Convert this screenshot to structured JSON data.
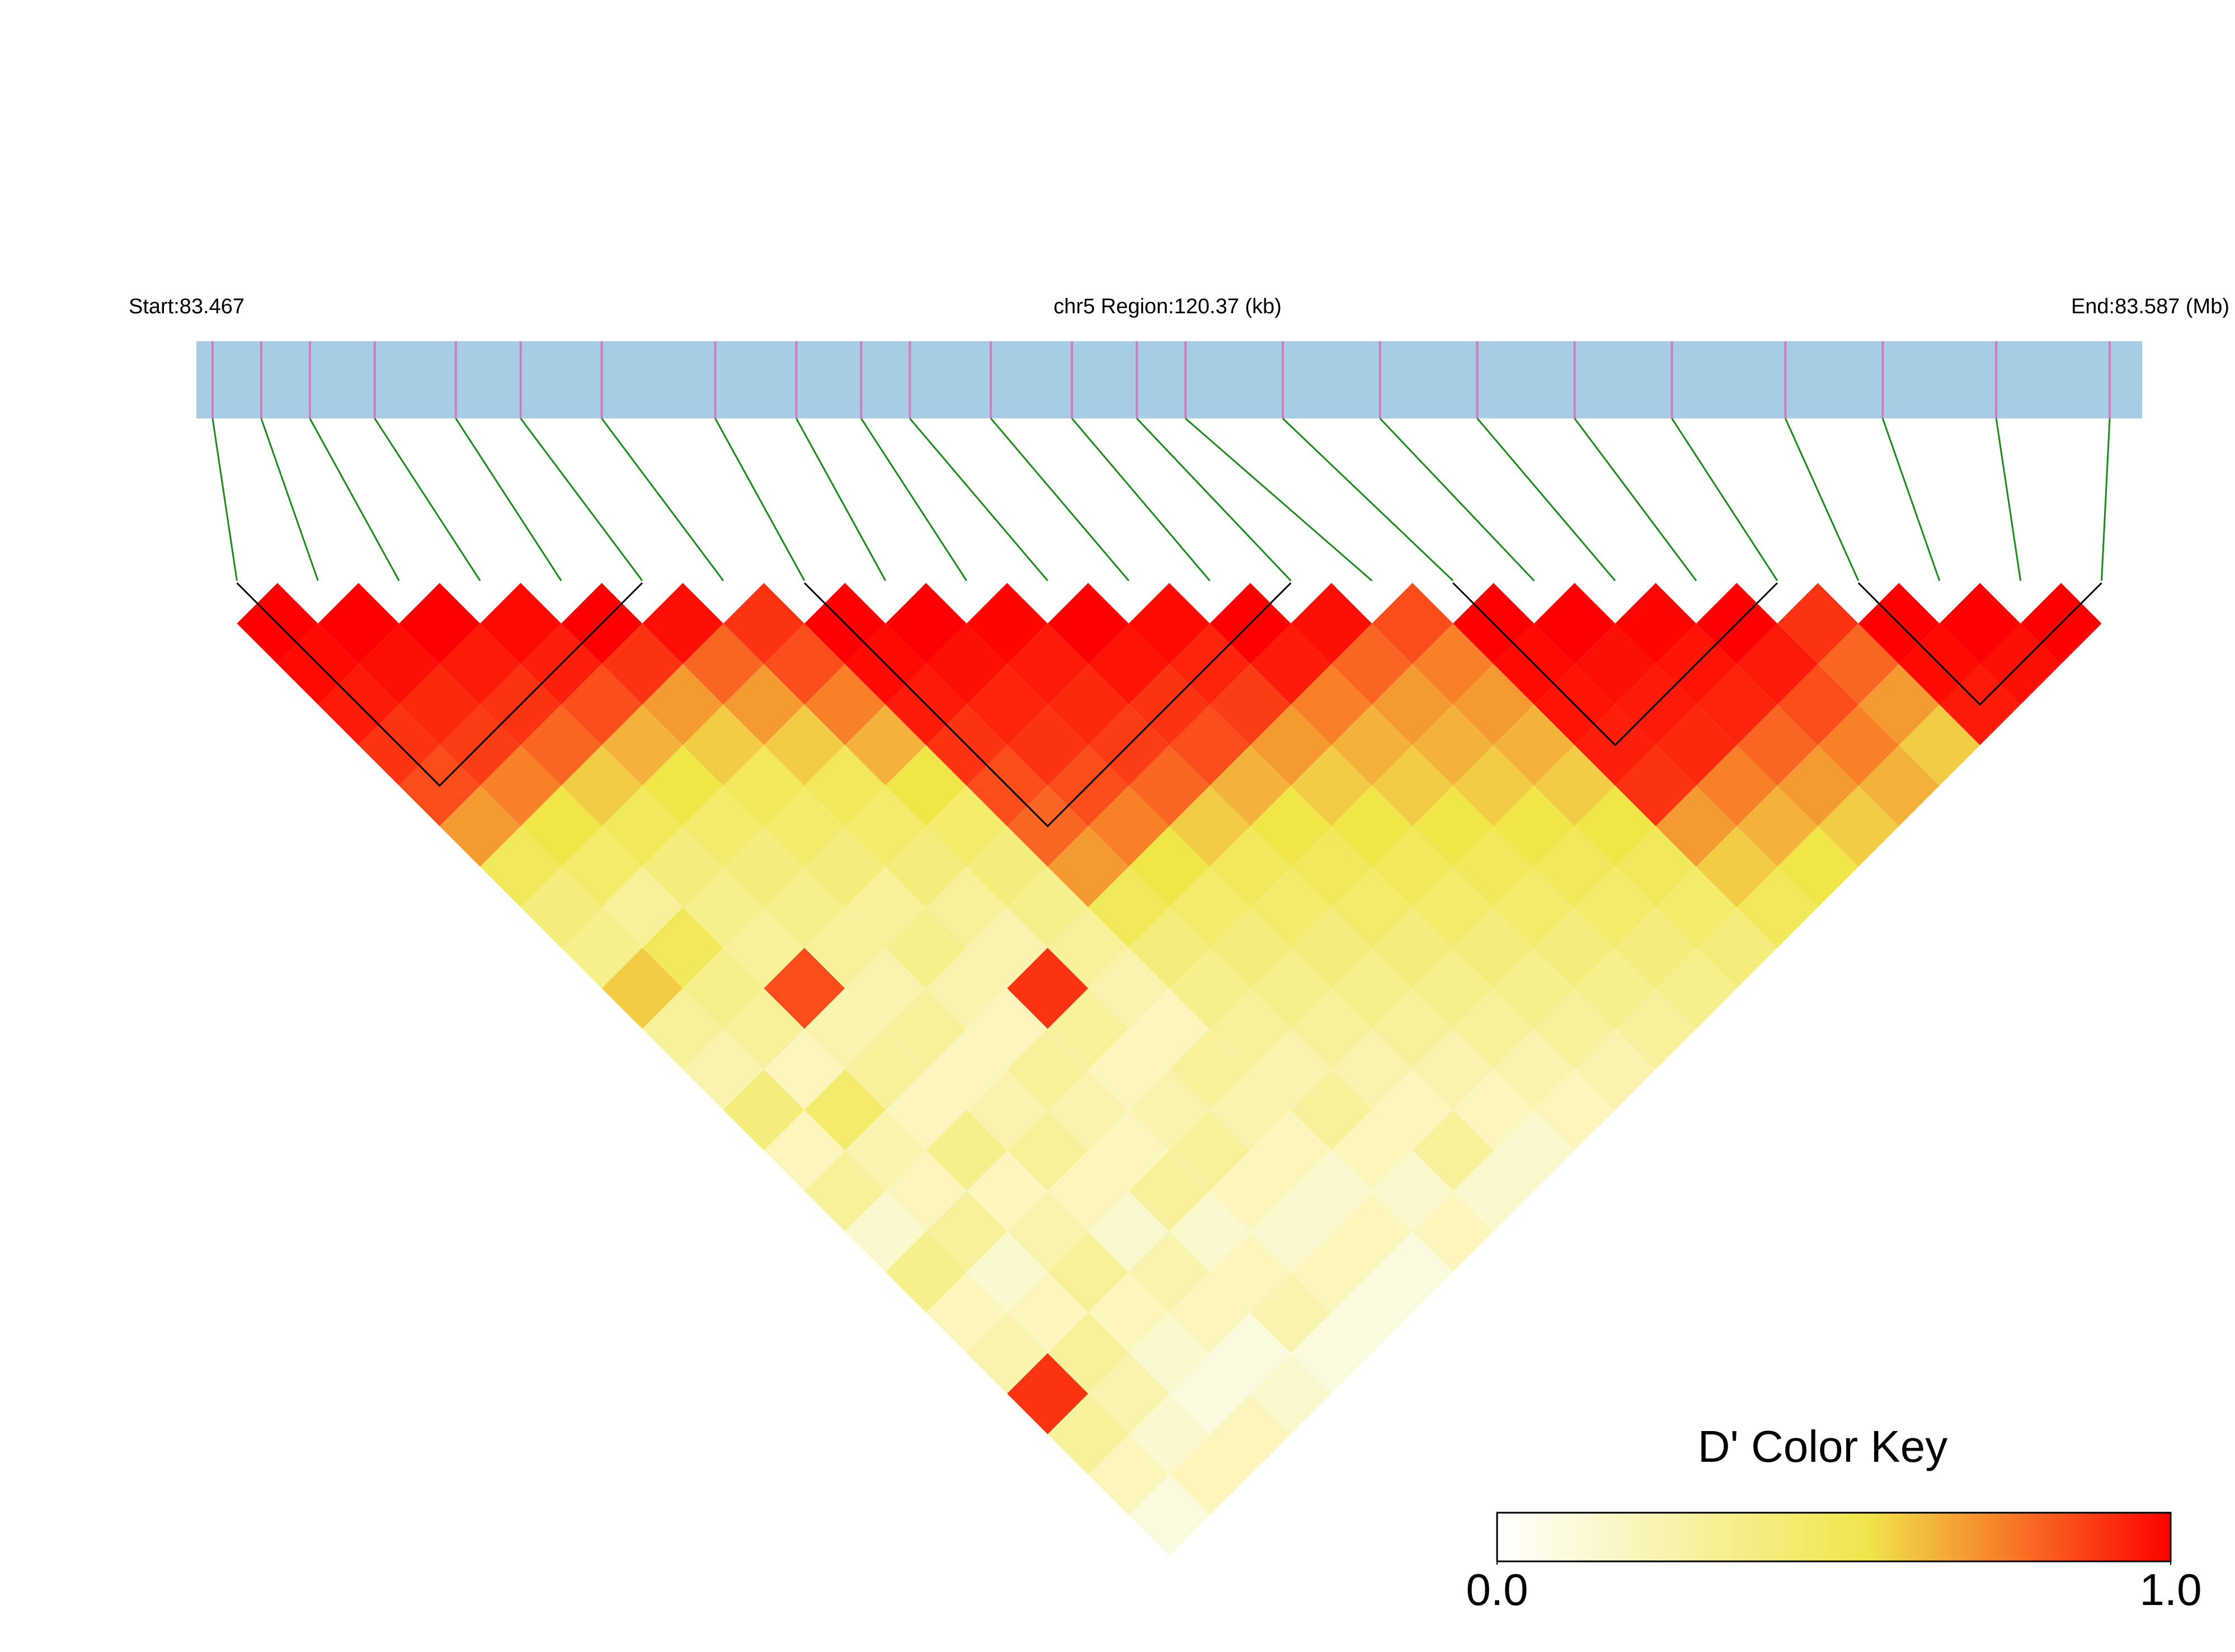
{
  "chart_data": {
    "type": "ld_heatmap",
    "start_label": "Start:83.467",
    "region_label": "chr5 Region:120.37 (kb)",
    "end_label": "End:83.587 (Mb)",
    "key_title": "D' Color Key",
    "xlim": [
      83.467,
      83.587
    ],
    "snp_positions": [
      83.468,
      83.471,
      83.474,
      83.478,
      83.483,
      83.487,
      83.492,
      83.499,
      83.504,
      83.508,
      83.511,
      83.516,
      83.521,
      83.525,
      83.528,
      83.534,
      83.54,
      83.546,
      83.552,
      83.558,
      83.565,
      83.571,
      83.578,
      83.585
    ],
    "dprime": [
      [
        1,
        0.98,
        0.95,
        0.9,
        0.85,
        0.7,
        0.5,
        0.4,
        0.35,
        0.6,
        0.3,
        0.25,
        0.4,
        0.2,
        0.3,
        0.15,
        0.35,
        0.2,
        0.25,
        0.9,
        0.3,
        0.2,
        0.1
      ],
      [
        1,
        0.97,
        0.92,
        0.88,
        0.75,
        0.55,
        0.45,
        0.3,
        0.5,
        0.35,
        0.3,
        0.2,
        0.45,
        0.25,
        0.2,
        0.3,
        0.15,
        0.2,
        0.3,
        0.25,
        0.15,
        0.2
      ],
      [
        1,
        0.95,
        0.9,
        0.8,
        0.6,
        0.5,
        0.4,
        0.35,
        0.3,
        0.85,
        0.25,
        0.3,
        0.2,
        0.35,
        0.2,
        0.25,
        0.3,
        0.2,
        0.15,
        0.1,
        0.2
      ],
      [
        0.98,
        0.94,
        0.85,
        0.65,
        0.55,
        0.45,
        0.4,
        0.35,
        0.3,
        0.25,
        0.3,
        0.2,
        0.25,
        0.3,
        0.2,
        0.15,
        0.25,
        0.2,
        0.1,
        0.15
      ],
      [
        1,
        0.9,
        0.7,
        0.6,
        0.5,
        0.45,
        0.4,
        0.3,
        0.35,
        0.25,
        0.2,
        0.3,
        0.25,
        0.2,
        0.3,
        0.15,
        0.2,
        0.25,
        0.1
      ],
      [
        0.97,
        0.8,
        0.7,
        0.6,
        0.5,
        0.45,
        0.4,
        0.3,
        0.25,
        0.9,
        0.3,
        0.2,
        0.25,
        0.3,
        0.2,
        0.15,
        0.2,
        0.1
      ],
      [
        0.9,
        0.85,
        0.75,
        0.65,
        0.55,
        0.45,
        0.4,
        0.35,
        0.3,
        0.25,
        0.2,
        0.3,
        0.25,
        0.2,
        0.15,
        0.2,
        0.1
      ],
      [
        1,
        0.98,
        0.95,
        0.9,
        0.85,
        0.8,
        0.7,
        0.5,
        0.4,
        0.35,
        0.3,
        0.25,
        0.3,
        0.2,
        0.15,
        0.2
      ],
      [
        1,
        0.97,
        0.93,
        0.9,
        0.85,
        0.75,
        0.55,
        0.45,
        0.4,
        0.35,
        0.3,
        0.25,
        0.2,
        0.3,
        0.15
      ],
      [
        0.99,
        0.95,
        0.92,
        0.88,
        0.8,
        0.6,
        0.5,
        0.45,
        0.4,
        0.35,
        0.3,
        0.25,
        0.2,
        0.15
      ],
      [
        1,
        0.96,
        0.9,
        0.85,
        0.65,
        0.55,
        0.5,
        0.45,
        0.4,
        0.35,
        0.3,
        0.25,
        0.2
      ],
      [
        0.98,
        0.93,
        0.88,
        0.7,
        0.6,
        0.55,
        0.5,
        0.45,
        0.4,
        0.35,
        0.3,
        0.25
      ],
      [
        1,
        0.95,
        0.75,
        0.65,
        0.6,
        0.55,
        0.5,
        0.45,
        0.4,
        0.35,
        0.3
      ],
      [
        0.97,
        0.8,
        0.7,
        0.65,
        0.6,
        0.55,
        0.5,
        0.45,
        0.4,
        0.35
      ],
      [
        0.85,
        0.75,
        0.7,
        0.65,
        0.6,
        0.55,
        0.5,
        0.45,
        0.4
      ],
      [
        1,
        0.98,
        0.96,
        0.94,
        0.9,
        0.7,
        0.6,
        0.5
      ],
      [
        1,
        0.97,
        0.95,
        0.92,
        0.75,
        0.65,
        0.55
      ],
      [
        0.99,
        0.96,
        0.93,
        0.8,
        0.7,
        0.6
      ],
      [
        1,
        0.95,
        0.85,
        0.75,
        0.65
      ],
      [
        0.9,
        0.8,
        0.7,
        0.6
      ],
      [
        1,
        0.98,
        0.95
      ],
      [
        1,
        0.97
      ],
      [
        1
      ]
    ],
    "blocks": [
      [
        0,
        5
      ],
      [
        7,
        13
      ],
      [
        15,
        19
      ],
      [
        20,
        23
      ]
    ],
    "bar_color": "#a6cde3",
    "snp_color": "#d07cc0",
    "link_color": "#1a8a1a",
    "block_color": "#000000",
    "colorscale": [
      "#ffffff",
      "#f0e64a",
      "#ff0000"
    ],
    "colorscale_stops": [
      0,
      0.55,
      1
    ],
    "clim": [
      0,
      1
    ],
    "key_ticks": [
      {
        "value": 0,
        "label": "0.0"
      },
      {
        "value": 1,
        "label": "1.0"
      }
    ]
  }
}
